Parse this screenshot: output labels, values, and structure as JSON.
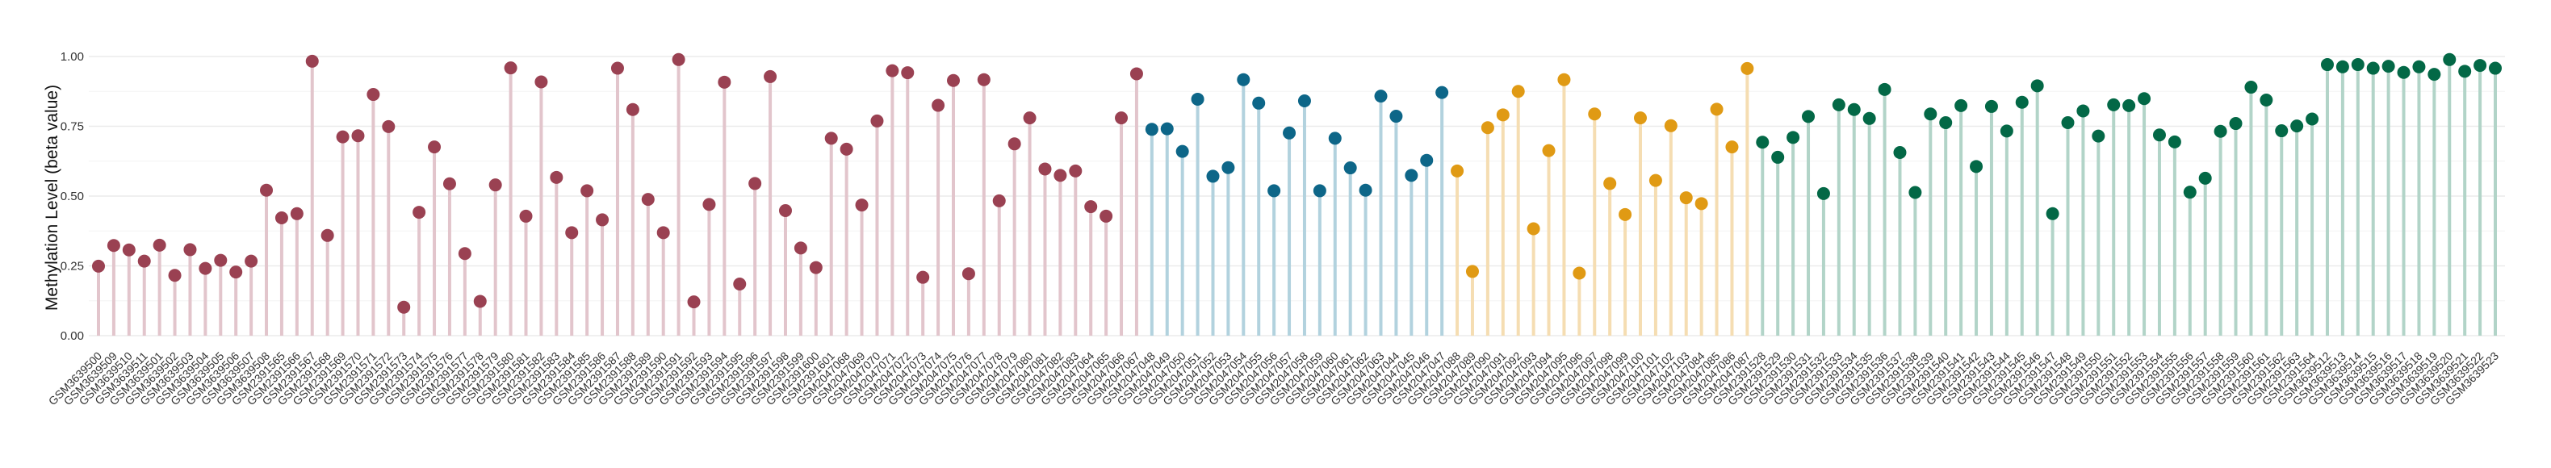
{
  "chart_data": {
    "type": "lollipop",
    "title": "",
    "xlabel": "",
    "ylabel": "Methylation Level (beta value)",
    "ylim": [
      0,
      1
    ],
    "yticks": [
      "0.00",
      "0.25",
      "0.50",
      "0.75",
      "1.00"
    ],
    "ytick_values": [
      0,
      0.25,
      0.5,
      0.75,
      1.0
    ],
    "grid": true,
    "legend": "none",
    "groups": [
      {
        "count": 69,
        "color": "#9A4152",
        "stem_color": "#E2C5CC"
      },
      {
        "count": 20,
        "color": "#0D6688",
        "stem_color": "#B2D2DE"
      },
      {
        "count": 20,
        "color": "#E09A14",
        "stem_color": "#F5DDB2"
      },
      {
        "count": 49,
        "color": "#036846",
        "stem_color": "#B2D4C8"
      }
    ],
    "categories": [
      "GSM3639500",
      "GSM3639509",
      "GSM3639510",
      "GSM3639511",
      "GSM3639501",
      "GSM3639502",
      "GSM3639503",
      "GSM3639504",
      "GSM3639505",
      "GSM3639506",
      "GSM3639507",
      "GSM3639508",
      "GSM2391565",
      "GSM2391566",
      "GSM2391567",
      "GSM2391568",
      "GSM2391569",
      "GSM2391570",
      "GSM2391571",
      "GSM2391572",
      "GSM2391573",
      "GSM2391574",
      "GSM2391575",
      "GSM2391576",
      "GSM2391577",
      "GSM2391578",
      "GSM2391579",
      "GSM2391580",
      "GSM2391581",
      "GSM2391582",
      "GSM2391583",
      "GSM2391584",
      "GSM2391585",
      "GSM2391586",
      "GSM2391587",
      "GSM2391588",
      "GSM2391589",
      "GSM2391590",
      "GSM2391591",
      "GSM2391592",
      "GSM2391593",
      "GSM2391594",
      "GSM2391595",
      "GSM2391596",
      "GSM2391597",
      "GSM2391598",
      "GSM2391599",
      "GSM2391600",
      "GSM2391601",
      "GSM2047068",
      "GSM2047069",
      "GSM2047070",
      "GSM2047071",
      "GSM2047072",
      "GSM2047073",
      "GSM2047074",
      "GSM2047075",
      "GSM2047076",
      "GSM2047077",
      "GSM2047078",
      "GSM2047079",
      "GSM2047080",
      "GSM2047081",
      "GSM2047082",
      "GSM2047083",
      "GSM2047064",
      "GSM2047065",
      "GSM2047066",
      "GSM2047067",
      "GSM2047048",
      "GSM2047049",
      "GSM2047050",
      "GSM2047051",
      "GSM2047052",
      "GSM2047053",
      "GSM2047054",
      "GSM2047055",
      "GSM2047056",
      "GSM2047057",
      "GSM2047058",
      "GSM2047059",
      "GSM2047060",
      "GSM2047061",
      "GSM2047062",
      "GSM2047063",
      "GSM2047044",
      "GSM2047045",
      "GSM2047046",
      "GSM2047047",
      "GSM2047088",
      "GSM2047089",
      "GSM2047090",
      "GSM2047091",
      "GSM2047092",
      "GSM2047093",
      "GSM2047094",
      "GSM2047095",
      "GSM2047096",
      "GSM2047097",
      "GSM2047098",
      "GSM2047099",
      "GSM2047100",
      "GSM2047101",
      "GSM2047102",
      "GSM2047103",
      "GSM2047084",
      "GSM2047085",
      "GSM2047086",
      "GSM2047087",
      "GSM2391528",
      "GSM2391529",
      "GSM2391530",
      "GSM2391531",
      "GSM2391532",
      "GSM2391533",
      "GSM2391534",
      "GSM2391535",
      "GSM2391536",
      "GSM2391537",
      "GSM2391538",
      "GSM2391539",
      "GSM2391540",
      "GSM2391541",
      "GSM2391542",
      "GSM2391543",
      "GSM2391544",
      "GSM2391545",
      "GSM2391546",
      "GSM2391547",
      "GSM2391548",
      "GSM2391549",
      "GSM2391550",
      "GSM2391551",
      "GSM2391552",
      "GSM2391553",
      "GSM2391554",
      "GSM2391555",
      "GSM2391556",
      "GSM2391557",
      "GSM2391558",
      "GSM2391559",
      "GSM2391560",
      "GSM2391561",
      "GSM2391562",
      "GSM2391563",
      "GSM2391564",
      "GSM3639512",
      "GSM3639513",
      "GSM3639514",
      "GSM3639515",
      "GSM3639516",
      "GSM3639517",
      "GSM3639518",
      "GSM3639519",
      "GSM3639520",
      "GSM3639521",
      "GSM3639522",
      "GSM3639523"
    ],
    "values": [
      0.249,
      0.323,
      0.307,
      0.267,
      0.324,
      0.216,
      0.308,
      0.241,
      0.27,
      0.228,
      0.267,
      0.521,
      0.422,
      0.437,
      0.983,
      0.359,
      0.712,
      0.716,
      0.864,
      0.749,
      0.102,
      0.442,
      0.676,
      0.544,
      0.294,
      0.123,
      0.54,
      0.959,
      0.428,
      0.909,
      0.567,
      0.369,
      0.519,
      0.415,
      0.958,
      0.81,
      0.488,
      0.369,
      0.989,
      0.121,
      0.47,
      0.908,
      0.185,
      0.545,
      0.928,
      0.448,
      0.314,
      0.244,
      0.707,
      0.668,
      0.468,
      0.769,
      0.949,
      0.942,
      0.209,
      0.825,
      0.914,
      0.222,
      0.917,
      0.483,
      0.687,
      0.78,
      0.597,
      0.574,
      0.59,
      0.462,
      0.428,
      0.78,
      0.938,
      0.739,
      0.741,
      0.66,
      0.847,
      0.571,
      0.602,
      0.917,
      0.833,
      0.519,
      0.726,
      0.841,
      0.519,
      0.707,
      0.601,
      0.521,
      0.858,
      0.786,
      0.574,
      0.628,
      0.871,
      0.59,
      0.23,
      0.745,
      0.791,
      0.875,
      0.383,
      0.663,
      0.917,
      0.224,
      0.794,
      0.545,
      0.434,
      0.78,
      0.556,
      0.752,
      0.494,
      0.473,
      0.811,
      0.676,
      0.957,
      0.693,
      0.639,
      0.71,
      0.785,
      0.509,
      0.827,
      0.81,
      0.778,
      0.882,
      0.656,
      0.513,
      0.794,
      0.763,
      0.824,
      0.606,
      0.821,
      0.733,
      0.836,
      0.895,
      0.437,
      0.763,
      0.805,
      0.715,
      0.827,
      0.824,
      0.849,
      0.719,
      0.694,
      0.514,
      0.564,
      0.732,
      0.76,
      0.89,
      0.844,
      0.734,
      0.751,
      0.776,
      0.971,
      0.963,
      0.971,
      0.958,
      0.965,
      0.943,
      0.963,
      0.936,
      0.989,
      0.947,
      0.968,
      0.958
    ]
  }
}
